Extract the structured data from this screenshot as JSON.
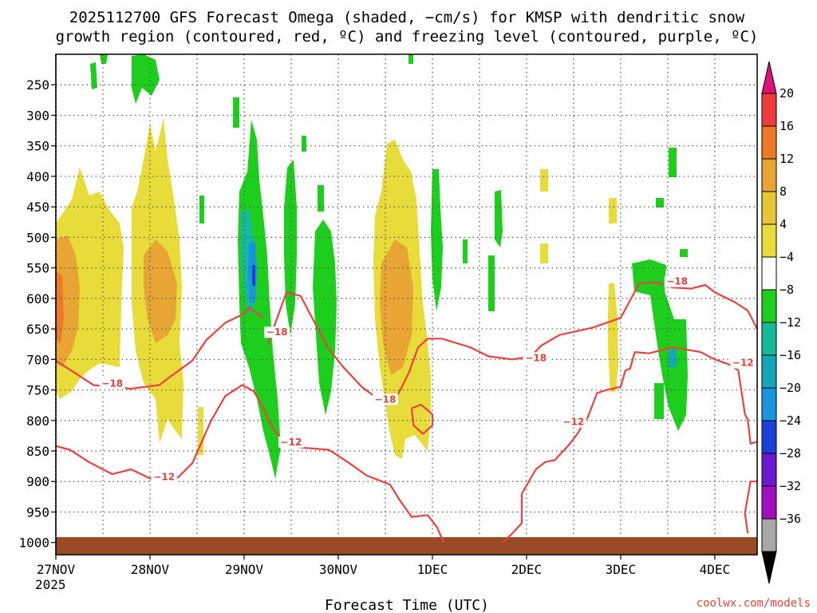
{
  "chart_data": {
    "type": "heatmap",
    "title_line1": "2025112700 GFS Forecast Omega (shaded, −cm/s) for KMSP with dendritic snow",
    "title_line2": "growth region (contoured, red, ºC) and freezing level (contoured, purple, ºC)",
    "xlabel": "Forecast Time (UTC)",
    "x_ticks": [
      "27NOV",
      "28NOV",
      "29NOV",
      "30NOV",
      "1DEC",
      "2DEC",
      "3DEC",
      "4DEC"
    ],
    "x_year_label": "2025",
    "x_range_days": [
      0,
      7.45
    ],
    "y_ticks": [
      "250",
      "300",
      "350",
      "400",
      "450",
      "500",
      "550",
      "600",
      "650",
      "700",
      "750",
      "800",
      "850",
      "900",
      "950",
      "1000"
    ],
    "y_tick_values": [
      250,
      300,
      350,
      400,
      450,
      500,
      550,
      600,
      650,
      700,
      750,
      800,
      850,
      900,
      950,
      1000
    ],
    "y_range_hpa": [
      200,
      1020
    ],
    "colorbar": {
      "labels": [
        "20",
        "16",
        "12",
        "8",
        "4",
        "−4",
        "−8",
        "−12",
        "−16",
        "−20",
        "−24",
        "−28",
        "−32",
        "−36"
      ],
      "colors": [
        "#ee3a3a",
        "#ec7a26",
        "#e8a534",
        "#e8c437",
        "#e8dc3a",
        "#ffffff",
        "#1ece1c",
        "#16b99a",
        "#12a7b9",
        "#1a94e0",
        "#1e3fd8",
        "#6c18d0",
        "#a010c0",
        "#a8a8a8"
      ],
      "top_color": "#e0107a",
      "bottom_color": "#000000"
    },
    "contour_labels": [
      {
        "text": "−18",
        "t": 0.6,
        "p": 742
      },
      {
        "text": "−18",
        "t": 2.35,
        "p": 658
      },
      {
        "text": "−18",
        "t": 3.5,
        "p": 768
      },
      {
        "text": "−18",
        "t": 5.1,
        "p": 700
      },
      {
        "text": "−18",
        "t": 6.6,
        "p": 575
      },
      {
        "text": "−12",
        "t": 1.15,
        "p": 895
      },
      {
        "text": "−12",
        "t": 2.5,
        "p": 838
      },
      {
        "text": "−12",
        "t": 5.5,
        "p": 805
      },
      {
        "text": "−12",
        "t": 7.3,
        "p": 708
      }
    ],
    "dgz_minus18_contours": [
      [
        [
          0,
          702
        ],
        [
          0.2,
          722
        ],
        [
          0.4,
          742
        ],
        [
          0.8,
          748
        ],
        [
          1.1,
          742
        ],
        [
          1.2,
          730
        ],
        [
          1.45,
          702
        ],
        [
          1.6,
          668
        ],
        [
          1.8,
          640
        ],
        [
          2.0,
          625
        ],
        [
          2.05,
          615
        ],
        [
          2.2,
          632
        ]
      ],
      [
        [
          2.25,
          675
        ],
        [
          2.45,
          590
        ],
        [
          2.6,
          596
        ],
        [
          2.75,
          640
        ],
        [
          2.9,
          683
        ],
        [
          3.05,
          712
        ],
        [
          3.25,
          745
        ],
        [
          3.45,
          768
        ],
        [
          3.6,
          768
        ],
        [
          3.75,
          722
        ],
        [
          3.85,
          680
        ],
        [
          3.95,
          666
        ],
        [
          4.1,
          666
        ],
        [
          4.4,
          680
        ],
        [
          4.6,
          695
        ],
        [
          4.85,
          700
        ],
        [
          5.05,
          695
        ],
        [
          5.15,
          678
        ],
        [
          5.35,
          660
        ],
        [
          5.7,
          648
        ],
        [
          5.85,
          640
        ],
        [
          6.0,
          632
        ],
        [
          6.2,
          575
        ],
        [
          6.4,
          574
        ],
        [
          6.55,
          582
        ],
        [
          6.75,
          584
        ],
        [
          6.9,
          578
        ],
        [
          7.0,
          590
        ],
        [
          7.2,
          605
        ],
        [
          7.35,
          620
        ],
        [
          7.45,
          650
        ]
      ],
      [
        [
          3.78,
          780
        ],
        [
          3.88,
          774
        ],
        [
          4.0,
          790
        ],
        [
          4.0,
          808
        ],
        [
          3.9,
          822
        ],
        [
          3.8,
          808
        ],
        [
          3.78,
          780
        ]
      ]
    ],
    "dgz_minus12_contours": [
      [
        [
          0,
          842
        ],
        [
          0.15,
          848
        ],
        [
          0.35,
          868
        ],
        [
          0.6,
          888
        ],
        [
          0.8,
          880
        ],
        [
          1.0,
          895
        ],
        [
          1.3,
          893
        ],
        [
          1.45,
          870
        ],
        [
          1.55,
          835
        ],
        [
          1.65,
          800
        ],
        [
          1.8,
          760
        ],
        [
          1.98,
          742
        ],
        [
          2.1,
          752
        ],
        [
          2.18,
          772
        ],
        [
          2.3,
          812
        ],
        [
          2.45,
          840
        ],
        [
          2.65,
          845
        ],
        [
          2.9,
          848
        ],
        [
          3.1,
          868
        ],
        [
          3.3,
          890
        ],
        [
          3.55,
          905
        ],
        [
          3.65,
          930
        ],
        [
          3.78,
          958
        ],
        [
          3.95,
          955
        ],
        [
          4.05,
          975
        ],
        [
          4.12,
          1000
        ]
      ],
      [
        [
          4.75,
          1000
        ],
        [
          4.85,
          985
        ],
        [
          4.95,
          968
        ],
        [
          4.95,
          920
        ],
        [
          5.1,
          880
        ],
        [
          5.2,
          868
        ],
        [
          5.3,
          865
        ],
        [
          5.45,
          840
        ],
        [
          5.55,
          820
        ],
        [
          5.6,
          805
        ],
        [
          5.65,
          795
        ],
        [
          5.75,
          755
        ],
        [
          5.85,
          750
        ],
        [
          6.0,
          745
        ],
        [
          6.05,
          718
        ],
        [
          6.1,
          715
        ],
        [
          6.15,
          688
        ],
        [
          6.3,
          690
        ],
        [
          6.55,
          680
        ],
        [
          6.85,
          688
        ],
        [
          7.0,
          700
        ],
        [
          7.15,
          708
        ],
        [
          7.25,
          718
        ],
        [
          7.32,
          790
        ],
        [
          7.35,
          798
        ],
        [
          7.38,
          838
        ],
        [
          7.45,
          835
        ]
      ],
      [
        [
          7.45,
          900
        ],
        [
          7.38,
          900
        ],
        [
          7.35,
          925
        ],
        [
          7.32,
          952
        ],
        [
          7.35,
          985
        ]
      ]
    ]
  },
  "credit": "coolwx.com/models"
}
